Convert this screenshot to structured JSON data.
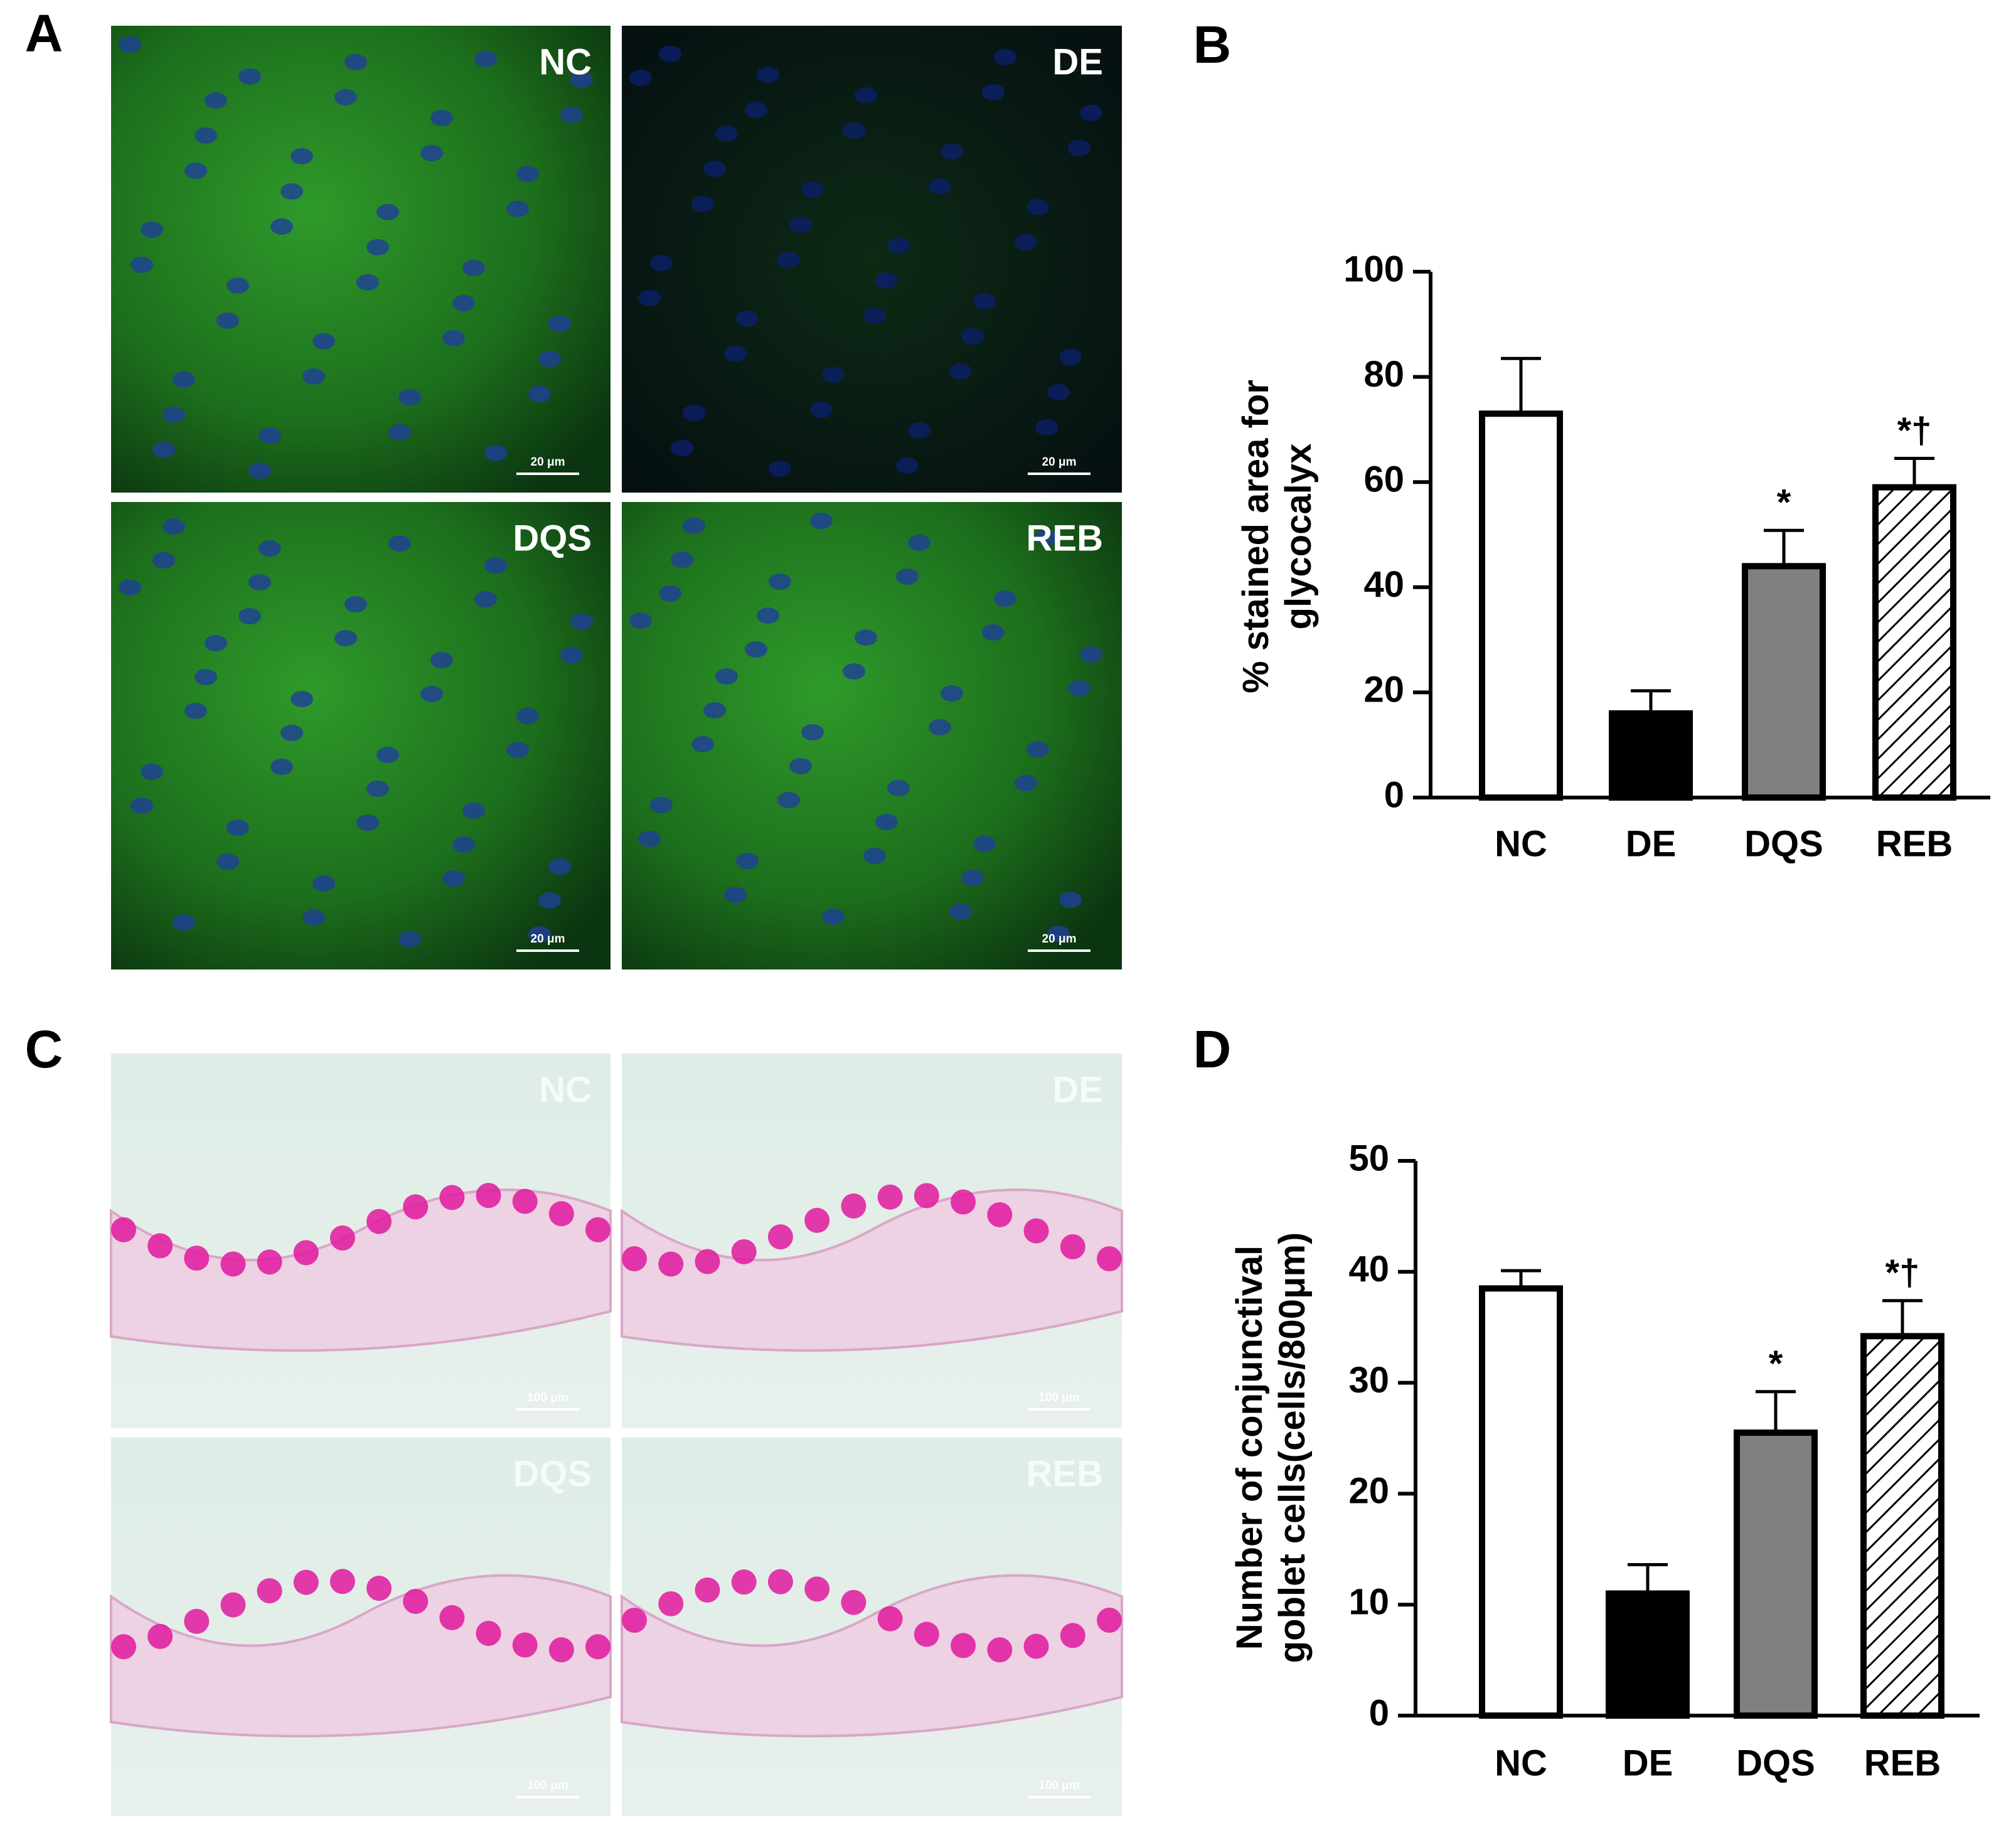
{
  "figure": {
    "image_panels": [
      {
        "letter": "A",
        "images": [
          {
            "label": "NC",
            "scale": "20 μm"
          },
          {
            "label": "DE",
            "scale": "20 μm"
          },
          {
            "label": "DQS",
            "scale": "20 μm"
          },
          {
            "label": "REB",
            "scale": "20 μm"
          }
        ]
      },
      {
        "letter": "C",
        "images": [
          {
            "label": "NC",
            "scale": "100 μm"
          },
          {
            "label": "DE",
            "scale": "100 μm"
          },
          {
            "label": "DQS",
            "scale": "100 μm"
          },
          {
            "label": "REB",
            "scale": "100 μm"
          }
        ]
      }
    ]
  },
  "chart_data": [
    {
      "type": "bar",
      "letter": "B",
      "ylabel": [
        "% stained area for",
        "glycocalyx"
      ],
      "categories": [
        "NC",
        "DE",
        "DQS",
        "REB"
      ],
      "values": [
        73,
        16,
        44,
        59
      ],
      "errors": [
        10.5,
        4.3,
        6.8,
        5.5
      ],
      "fills": [
        "#ffffff",
        "#000000",
        "#808080",
        "#ffffff"
      ],
      "hatch": [
        false,
        false,
        false,
        true
      ],
      "value_annotations": [
        null,
        null,
        "*",
        "*†"
      ],
      "ylim": [
        0,
        100
      ],
      "yticks": [
        0,
        20,
        40,
        60,
        80,
        100
      ]
    },
    {
      "type": "bar",
      "letter": "D",
      "ylabel": [
        "Number of conjunctival",
        "goblet cells(cells/800μm)"
      ],
      "categories": [
        "NC",
        "DE",
        "DQS",
        "REB"
      ],
      "values": [
        38.5,
        11,
        25.5,
        34.2
      ],
      "errors": [
        1.6,
        2.6,
        3.7,
        3.2
      ],
      "fills": [
        "#ffffff",
        "#000000",
        "#808080",
        "#ffffff"
      ],
      "hatch": [
        false,
        false,
        false,
        true
      ],
      "value_annotations": [
        null,
        null,
        "*",
        "*†"
      ],
      "ylim": [
        0,
        50
      ],
      "yticks": [
        0,
        10,
        20,
        30,
        40,
        50
      ]
    }
  ]
}
